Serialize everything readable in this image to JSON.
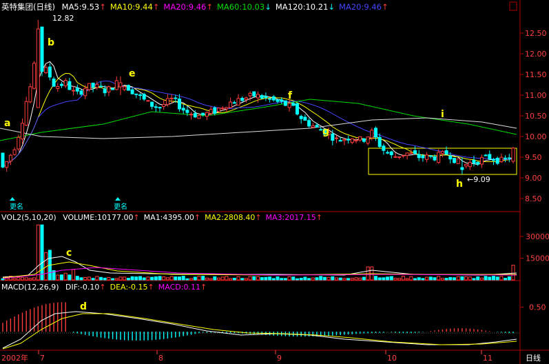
{
  "main_panel": {
    "title": "英特集团(日线)",
    "indicators": [
      {
        "label": "MA5:9.53",
        "arrow": "↑",
        "color": "#ffffff",
        "arrow_color": "#ff3b3b"
      },
      {
        "label": "MA10:9.44",
        "arrow": "↑",
        "color": "#ffff00",
        "arrow_color": "#ff3b3b"
      },
      {
        "label": "MA20:9.46",
        "arrow": "↑",
        "color": "#ff00ff",
        "arrow_color": "#ff3b3b"
      },
      {
        "label": "MA60:10.03",
        "arrow": "↓",
        "color": "#00dd00",
        "arrow_color": "#00ffff"
      },
      {
        "label": "MA120:10.21",
        "arrow": "↓",
        "color": "#ffffff",
        "arrow_color": "#00ffff"
      },
      {
        "label": "MA20:9.46",
        "arrow": "↑",
        "color": "#4444ff",
        "arrow_color": "#ff3b3b"
      }
    ],
    "price_ticks": [
      "12.50",
      "12.00",
      "11.50",
      "11.00",
      "10.50",
      "10.00",
      "9.50",
      "9.00",
      "8.50"
    ],
    "high_label": "12.82",
    "low_label": "←9.09",
    "annotations": [
      "a",
      "b",
      "e",
      "f",
      "g",
      "i",
      "h"
    ],
    "event_marker": "更名"
  },
  "volume_panel": {
    "title": "VOL2(5,10,20)",
    "indicators": [
      {
        "label": "VOLUME:10177.00",
        "arrow": "↑",
        "color": "#ffffff",
        "arrow_color": "#ff3b3b"
      },
      {
        "label": "MA1:4395.00",
        "arrow": "↑",
        "color": "#ffffff",
        "arrow_color": "#ff3b3b"
      },
      {
        "label": "MA2:2808.40",
        "arrow": "↑",
        "color": "#ffff00",
        "arrow_color": "#ff3b3b"
      },
      {
        "label": "MA3:2017.15",
        "arrow": "↑",
        "color": "#ff00ff",
        "arrow_color": "#ff3b3b"
      }
    ],
    "ticks": [
      "30000",
      "15000"
    ],
    "annotation": "c"
  },
  "macd_panel": {
    "title": "MACD(12,26,9)",
    "indicators": [
      {
        "label": "DIF:-0.10",
        "arrow": "↑",
        "color": "#ffffff",
        "arrow_color": "#ff3b3b"
      },
      {
        "label": "DEA:-0.15",
        "arrow": "↑",
        "color": "#ffff00",
        "arrow_color": "#ff3b3b"
      },
      {
        "label": "MACD:0.11",
        "arrow": "↑",
        "color": "#ff00ff",
        "arrow_color": "#ff3b3b"
      }
    ],
    "ticks": [
      "0.50"
    ],
    "annotation": "d"
  },
  "x_axis": {
    "labels": [
      "2002年",
      "7",
      "8",
      "9",
      "10",
      "11"
    ],
    "period_label": "日线"
  },
  "colors": {
    "up": "#ff3b3b",
    "down": "#00ffff",
    "ma5": "#ffffff",
    "ma10": "#ffff00",
    "ma20": "#4444ff",
    "ma60": "#00dd00",
    "ma120": "#ffffff",
    "axis": "#b00000",
    "annotation": "#ffff00",
    "box": "#ffff00"
  },
  "chart_data": {
    "type": "candlestick",
    "security": "英特集团",
    "period": "日线",
    "price_range": [
      8.3,
      12.9
    ],
    "candles_approx": [
      {
        "label": "b",
        "o": 10.7,
        "h": 12.82,
        "l": 10.7,
        "c": 12.6
      },
      {
        "label": "e",
        "o": 11.2,
        "h": 11.45,
        "l": 11.0,
        "c": 11.3
      },
      {
        "label": "f",
        "o": 10.7,
        "h": 11.1,
        "l": 10.6,
        "c": 10.8
      },
      {
        "label": "h",
        "o": 9.25,
        "h": 9.5,
        "l": 9.09,
        "c": 9.2
      },
      {
        "label": "last",
        "o": 9.4,
        "h": 9.75,
        "l": 9.35,
        "c": 9.72
      }
    ],
    "moving_averages": {
      "MA5": 9.53,
      "MA10": 9.44,
      "MA20": 9.46,
      "MA60": 10.03,
      "MA120": 10.21
    },
    "volume": {
      "VOLUME": 10177.0,
      "MA1": 4395.0,
      "MA2": 2808.4,
      "MA3": 2017.15,
      "range": [
        0,
        40000
      ]
    },
    "macd": {
      "DIF": -0.1,
      "DEA": -0.15,
      "MACD": 0.11,
      "range": [
        -0.35,
        1.0
      ]
    }
  }
}
